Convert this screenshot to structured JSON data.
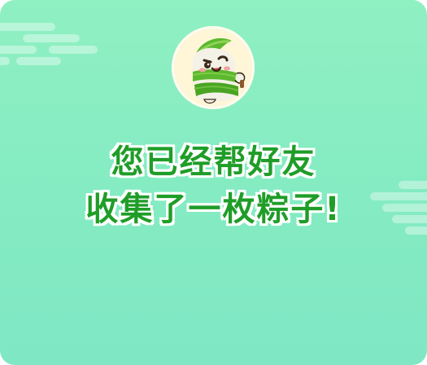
{
  "message": {
    "line1": "您已经帮好友",
    "line2": "收集了一枚粽子!"
  },
  "avatar": {
    "icon": "zongzi-mascot-icon"
  },
  "colors": {
    "background_top": "#8ff0c2",
    "background_bottom": "#7fe7c4",
    "text_green": "#1f9d28",
    "text_outline": "#ffffff",
    "avatar_bg": "#fff6d8",
    "leaf_green": "#5cb82e"
  }
}
